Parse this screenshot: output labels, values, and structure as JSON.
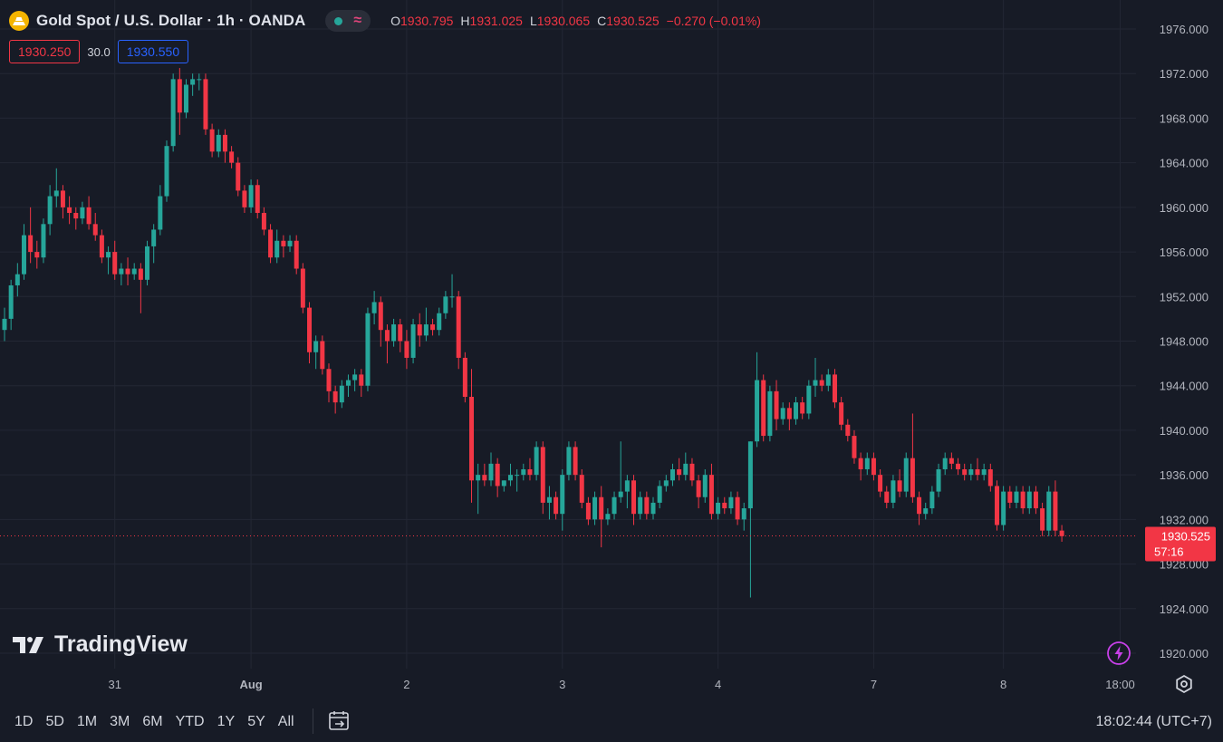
{
  "header": {
    "title": "Gold Spot / U.S. Dollar · 1h · OANDA",
    "wave_glyph": "≈",
    "ohlc": [
      {
        "k": "O",
        "v": "1930.795"
      },
      {
        "k": "H",
        "v": "1931.025"
      },
      {
        "k": "L",
        "v": "1930.065"
      },
      {
        "k": "C",
        "v": "1930.525"
      },
      {
        "k": "",
        "v": "−0.270 (−0.01%)"
      }
    ]
  },
  "quote": {
    "bid": "1930.250",
    "spread": "30.0",
    "ask": "1930.550"
  },
  "logo": "TradingView",
  "ranges": [
    "1D",
    "5D",
    "1M",
    "3M",
    "6M",
    "YTD",
    "1Y",
    "5Y",
    "All"
  ],
  "clock": "18:02:44 (UTC+7)",
  "colors": {
    "up": "#26a69a",
    "down": "#f23645",
    "bg": "#171b26",
    "grid": "#232734"
  },
  "chart_data": {
    "type": "candlestick",
    "title": "Gold Spot / U.S. Dollar · 1h · OANDA",
    "ylim": [
      1918,
      1978
    ],
    "y_ticks": [
      1920,
      1924,
      1928,
      1932,
      1936,
      1940,
      1944,
      1948,
      1952,
      1956,
      1960,
      1964,
      1968,
      1972,
      1976
    ],
    "y_tick_labels": [
      "1920.000",
      "1924.000",
      "1928.000",
      "1932.000",
      "1936.000",
      "1940.000",
      "1944.000",
      "1948.000",
      "1952.000",
      "1956.000",
      "1960.000",
      "1964.000",
      "1968.000",
      "1972.000",
      "1976.000"
    ],
    "x_labels": [
      {
        "label": "31",
        "index": 17
      },
      {
        "label": "Aug",
        "index": 38
      },
      {
        "label": "2",
        "index": 62
      },
      {
        "label": "3",
        "index": 86
      },
      {
        "label": "4",
        "index": 110
      },
      {
        "label": "7",
        "index": 134
      },
      {
        "label": "8",
        "index": 154
      },
      {
        "label": "18:00",
        "index": 172
      }
    ],
    "last_price": {
      "value": 1930.525,
      "label": "1930.525",
      "countdown": "57:16"
    },
    "candles": [
      [
        1949,
        1951,
        1948,
        1950
      ],
      [
        1950,
        1953.5,
        1949,
        1953
      ],
      [
        1953,
        1955,
        1952,
        1954
      ],
      [
        1954,
        1958.5,
        1953.5,
        1957.5
      ],
      [
        1957.5,
        1960,
        1955,
        1956
      ],
      [
        1956,
        1957,
        1954.5,
        1955.5
      ],
      [
        1955.5,
        1959,
        1955,
        1958.5
      ],
      [
        1958.5,
        1962,
        1957.5,
        1961
      ],
      [
        1961,
        1963.5,
        1960,
        1961.5
      ],
      [
        1961.5,
        1962,
        1959,
        1960
      ],
      [
        1960,
        1961,
        1958.5,
        1959.5
      ],
      [
        1959.5,
        1960,
        1958,
        1959
      ],
      [
        1959,
        1960.5,
        1958.5,
        1960
      ],
      [
        1960,
        1961,
        1958,
        1958.5
      ],
      [
        1958.5,
        1959.5,
        1957,
        1957.5
      ],
      [
        1957.5,
        1958,
        1955,
        1955.5
      ],
      [
        1955.5,
        1956.5,
        1954,
        1956
      ],
      [
        1956,
        1957,
        1953.5,
        1954
      ],
      [
        1954,
        1955,
        1953,
        1954.5
      ],
      [
        1954.5,
        1955.5,
        1953,
        1954
      ],
      [
        1954,
        1955,
        1953.5,
        1954.5
      ],
      [
        1954.5,
        1955,
        1950.5,
        1953.5
      ],
      [
        1953.5,
        1957,
        1953,
        1956.5
      ],
      [
        1956.5,
        1958.5,
        1955,
        1958
      ],
      [
        1958,
        1962,
        1957.5,
        1961
      ],
      [
        1961,
        1966,
        1960.5,
        1965.5
      ],
      [
        1965.5,
        1972,
        1965,
        1971.5
      ],
      [
        1971.5,
        1972.5,
        1966.5,
        1968.5
      ],
      [
        1968.5,
        1971.5,
        1968,
        1971
      ],
      [
        1971,
        1972,
        1970,
        1971.5
      ],
      [
        1971.5,
        1972,
        1970.5,
        1971.5
      ],
      [
        1971.5,
        1972,
        1966.5,
        1967
      ],
      [
        1967,
        1967.5,
        1964.5,
        1965
      ],
      [
        1965,
        1967,
        1964.5,
        1966.5
      ],
      [
        1966.5,
        1967,
        1964,
        1965
      ],
      [
        1965,
        1965.5,
        1963.5,
        1964
      ],
      [
        1964,
        1964.5,
        1961,
        1961.5
      ],
      [
        1961.5,
        1962,
        1959.5,
        1960
      ],
      [
        1960,
        1962.5,
        1959.5,
        1962
      ],
      [
        1962,
        1962.5,
        1959,
        1959.5
      ],
      [
        1959.5,
        1960,
        1957.5,
        1958
      ],
      [
        1958,
        1958.5,
        1955,
        1955.5
      ],
      [
        1955.5,
        1958,
        1955,
        1957
      ],
      [
        1957,
        1957.5,
        1955.5,
        1956.5
      ],
      [
        1956.5,
        1957.5,
        1956,
        1957
      ],
      [
        1957,
        1957.5,
        1954,
        1954.5
      ],
      [
        1954.5,
        1955,
        1950.5,
        1951
      ],
      [
        1951,
        1951.5,
        1946,
        1947
      ],
      [
        1947,
        1948.5,
        1945.5,
        1948
      ],
      [
        1948,
        1948.5,
        1945,
        1945.5
      ],
      [
        1945.5,
        1946,
        1942.5,
        1943.5
      ],
      [
        1943.5,
        1944,
        1941.5,
        1942.5
      ],
      [
        1942.5,
        1944.5,
        1942,
        1944
      ],
      [
        1944,
        1945,
        1943,
        1944.5
      ],
      [
        1944.5,
        1945.5,
        1943.5,
        1945
      ],
      [
        1945,
        1945.5,
        1943,
        1944
      ],
      [
        1944,
        1951,
        1943.5,
        1950.5
      ],
      [
        1950.5,
        1952.5,
        1949.5,
        1951.5
      ],
      [
        1951.5,
        1952,
        1947.5,
        1949
      ],
      [
        1949,
        1949.5,
        1946,
        1948
      ],
      [
        1948,
        1950,
        1947.5,
        1949.5
      ],
      [
        1949.5,
        1950,
        1947,
        1948
      ],
      [
        1948,
        1949,
        1945.5,
        1946.5
      ],
      [
        1946.5,
        1950,
        1946,
        1949.5
      ],
      [
        1949.5,
        1950.5,
        1947.5,
        1948.5
      ],
      [
        1948.5,
        1951,
        1948,
        1949.5
      ],
      [
        1949.5,
        1950,
        1948.5,
        1949
      ],
      [
        1949,
        1951,
        1948.5,
        1950.5
      ],
      [
        1950.5,
        1952.5,
        1950,
        1952
      ],
      [
        1952,
        1954,
        1951,
        1952
      ],
      [
        1952,
        1952.5,
        1945.5,
        1946.5
      ],
      [
        1946.5,
        1947,
        1942.5,
        1943
      ],
      [
        1943,
        1945.5,
        1933.5,
        1935.5
      ],
      [
        1935.5,
        1937,
        1932.5,
        1936
      ],
      [
        1936,
        1937,
        1935,
        1935.5
      ],
      [
        1935.5,
        1938,
        1935,
        1937
      ],
      [
        1937,
        1937.5,
        1934,
        1935
      ],
      [
        1935,
        1935.5,
        1934.5,
        1935.5
      ],
      [
        1935.5,
        1937,
        1935,
        1936
      ],
      [
        1936,
        1936.5,
        1934.5,
        1936
      ],
      [
        1936,
        1937,
        1935.5,
        1936.5
      ],
      [
        1936.5,
        1937.5,
        1935.5,
        1936
      ],
      [
        1936,
        1939,
        1935.5,
        1938.5
      ],
      [
        1938.5,
        1939,
        1932.5,
        1933.5
      ],
      [
        1933.5,
        1935,
        1932,
        1934
      ],
      [
        1934,
        1934.5,
        1932,
        1932.5
      ],
      [
        1932.5,
        1936.5,
        1931,
        1936
      ],
      [
        1936,
        1939,
        1935.5,
        1938.5
      ],
      [
        1938.5,
        1939,
        1935.5,
        1936
      ],
      [
        1936,
        1936.5,
        1933,
        1933.5
      ],
      [
        1933.5,
        1934,
        1931.5,
        1932
      ],
      [
        1932,
        1934.5,
        1931.5,
        1934
      ],
      [
        1934,
        1935,
        1929.5,
        1932
      ],
      [
        1932,
        1933,
        1931.5,
        1932.5
      ],
      [
        1932.5,
        1934.5,
        1932,
        1934
      ],
      [
        1934,
        1939,
        1933.5,
        1934.5
      ],
      [
        1934.5,
        1936,
        1933,
        1935.5
      ],
      [
        1935.5,
        1936,
        1931.5,
        1932.5
      ],
      [
        1932.5,
        1934.5,
        1932,
        1934
      ],
      [
        1934,
        1934.5,
        1932,
        1932.5
      ],
      [
        1932.5,
        1934,
        1932,
        1933.5
      ],
      [
        1933.5,
        1935.5,
        1933,
        1935
      ],
      [
        1935,
        1936,
        1934.5,
        1935.5
      ],
      [
        1935.5,
        1937,
        1935,
        1936.5
      ],
      [
        1936.5,
        1937.5,
        1935.5,
        1936
      ],
      [
        1936,
        1938,
        1935.5,
        1937
      ],
      [
        1937,
        1937.5,
        1935,
        1935.5
      ],
      [
        1935.5,
        1936,
        1933,
        1934
      ],
      [
        1934,
        1936.5,
        1933.5,
        1936
      ],
      [
        1936,
        1937,
        1932,
        1932.5
      ],
      [
        1932.5,
        1934,
        1932,
        1933.5
      ],
      [
        1933.5,
        1934,
        1932.5,
        1933
      ],
      [
        1933,
        1934.5,
        1932.5,
        1934
      ],
      [
        1934,
        1934.5,
        1931.5,
        1932
      ],
      [
        1932,
        1933.5,
        1931,
        1933
      ],
      [
        1933,
        1939,
        1925,
        1939
      ],
      [
        1939,
        1947,
        1938.5,
        1944.5
      ],
      [
        1944.5,
        1945,
        1939,
        1939.5
      ],
      [
        1939.5,
        1944,
        1939,
        1943.5
      ],
      [
        1943.5,
        1944.5,
        1940,
        1941
      ],
      [
        1941,
        1942.5,
        1940.5,
        1942
      ],
      [
        1942,
        1942.5,
        1940,
        1941
      ],
      [
        1941,
        1943,
        1940.5,
        1942.5
      ],
      [
        1942.5,
        1943,
        1941,
        1941.5
      ],
      [
        1941.5,
        1944.5,
        1941,
        1944
      ],
      [
        1944,
        1946.5,
        1943,
        1944.5
      ],
      [
        1944.5,
        1945,
        1943.5,
        1944
      ],
      [
        1944,
        1945.5,
        1943.5,
        1945
      ],
      [
        1945,
        1945.5,
        1942,
        1942.5
      ],
      [
        1942.5,
        1943,
        1940,
        1940.5
      ],
      [
        1940.5,
        1941,
        1939,
        1939.5
      ],
      [
        1939.5,
        1940,
        1937,
        1937.5
      ],
      [
        1937.5,
        1938,
        1935.5,
        1936.5
      ],
      [
        1936.5,
        1938,
        1936,
        1937.5
      ],
      [
        1937.5,
        1938,
        1935.5,
        1936
      ],
      [
        1936,
        1936.5,
        1934,
        1934.5
      ],
      [
        1934.5,
        1935,
        1933,
        1933.5
      ],
      [
        1933.5,
        1936,
        1933,
        1935.5
      ],
      [
        1935.5,
        1936.5,
        1934,
        1934.5
      ],
      [
        1934.5,
        1938,
        1934,
        1937.5
      ],
      [
        1937.5,
        1941.5,
        1933.5,
        1934
      ],
      [
        1934,
        1934.5,
        1931.5,
        1932.5
      ],
      [
        1932.5,
        1933.5,
        1932,
        1933
      ],
      [
        1933,
        1935,
        1932.5,
        1934.5
      ],
      [
        1934.5,
        1937,
        1934,
        1936.5
      ],
      [
        1936.5,
        1938,
        1936,
        1937.5
      ],
      [
        1937.5,
        1938,
        1936.5,
        1937
      ],
      [
        1937,
        1937.5,
        1936,
        1936.5
      ],
      [
        1936.5,
        1937,
        1935.5,
        1936
      ],
      [
        1936,
        1937,
        1935.5,
        1936.5
      ],
      [
        1936.5,
        1937.5,
        1935.5,
        1936
      ],
      [
        1936,
        1937,
        1935.5,
        1936.5
      ],
      [
        1936.5,
        1937,
        1934.5,
        1935
      ],
      [
        1935,
        1935.5,
        1931,
        1931.5
      ],
      [
        1931.5,
        1935,
        1931,
        1934.5
      ],
      [
        1934.5,
        1935,
        1933,
        1933.5
      ],
      [
        1933.5,
        1935,
        1933,
        1934.5
      ],
      [
        1934.5,
        1935,
        1932.5,
        1933
      ],
      [
        1933,
        1935,
        1932.5,
        1934.5
      ],
      [
        1934.5,
        1935,
        1932.5,
        1933
      ],
      [
        1933,
        1933.5,
        1930.5,
        1931
      ],
      [
        1931,
        1935,
        1930.5,
        1934.5
      ],
      [
        1934.5,
        1935.5,
        1930.5,
        1931
      ],
      [
        1931,
        1931.5,
        1930,
        1930.5
      ]
    ]
  }
}
